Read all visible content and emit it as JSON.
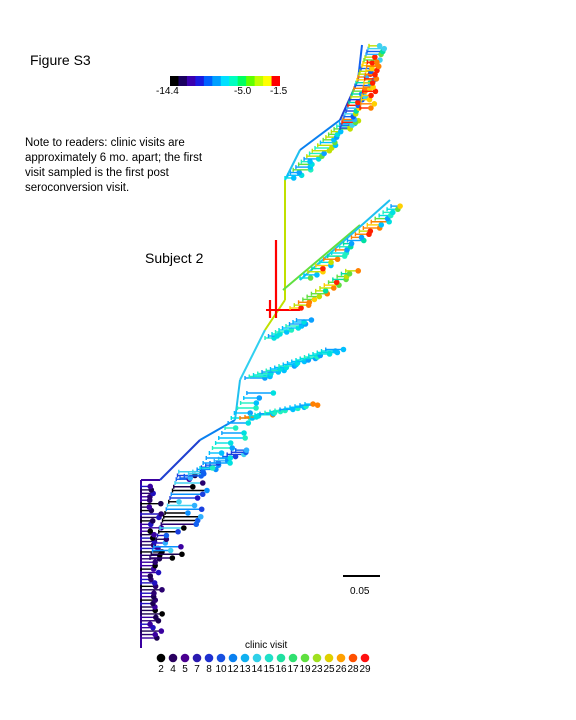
{
  "figure_title": "Figure S3",
  "note": "Note to readers: clinic visits are approximately 6 mo. apart; the first visit sampled is the first post seroconversion visit.",
  "subject_label": "Subject 2",
  "colorbar": {
    "min_label": "-14.4",
    "mid_label": "-5.0",
    "max_label": "-1.5",
    "colors": [
      "#000000",
      "#1a0060",
      "#3a00b0",
      "#1a1ae0",
      "#0060ff",
      "#00a0ff",
      "#00e0ff",
      "#00ffc0",
      "#00ff60",
      "#60ff00",
      "#c0ff00",
      "#ffff00",
      "#ff0000"
    ]
  },
  "scale_bar": {
    "label": "0.05"
  },
  "legend": {
    "title": "clinic visit",
    "visits": [
      "2",
      "4",
      "5",
      "7",
      "8",
      "10",
      "12",
      "13",
      "14",
      "15",
      "16",
      "17",
      "19",
      "23",
      "25",
      "26",
      "28",
      "29"
    ],
    "colors": [
      "#000000",
      "#2a0060",
      "#4a0090",
      "#2a1ab0",
      "#1e30d0",
      "#1850e0",
      "#0a80f0",
      "#10b0f0",
      "#30d0e8",
      "#20e0c8",
      "#20e0a0",
      "#30e070",
      "#60e040",
      "#a0e020",
      "#e0d000",
      "#ffa000",
      "#ff5000",
      "#ff1010"
    ]
  }
}
